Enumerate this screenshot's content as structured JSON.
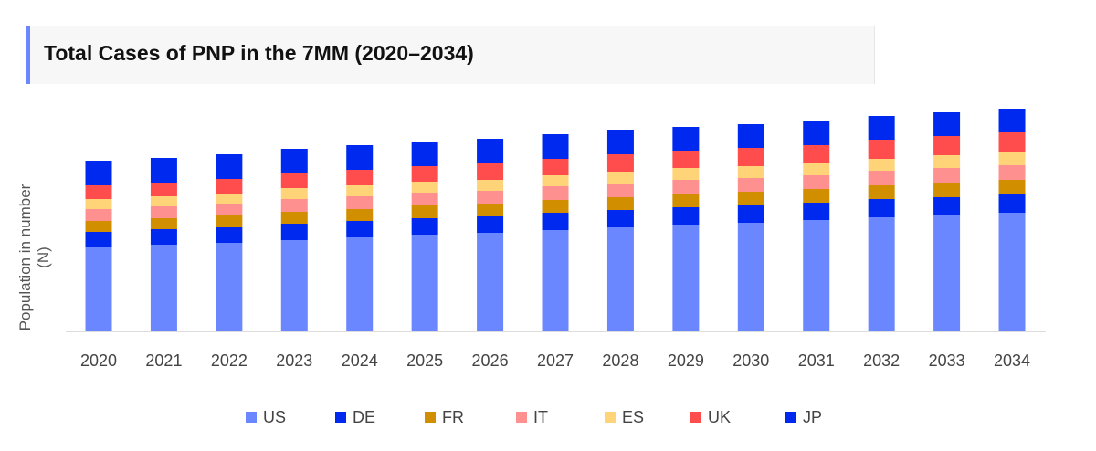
{
  "chart_data": {
    "type": "bar",
    "stacked": true,
    "title": "Total Cases of PNP in the 7MM (2020–2034)",
    "xlabel": "",
    "ylabel": "Population in number (N)",
    "y_tick_labels_shown": false,
    "grid": false,
    "legend_placement": "bottom",
    "categories": [
      "2020",
      "2021",
      "2022",
      "2023",
      "2024",
      "2025",
      "2026",
      "2027",
      "2028",
      "2029",
      "2030",
      "2031",
      "2032",
      "2033",
      "2034"
    ],
    "series": [
      {
        "name": "US",
        "color": "#6b87ff",
        "values": [
          92,
          95,
          97,
          100,
          103,
          106,
          108,
          111,
          114,
          117,
          119,
          122,
          125,
          127,
          130
        ]
      },
      {
        "name": "DE",
        "color": "#0029f0",
        "values": [
          17,
          17,
          17,
          18,
          18,
          18,
          18,
          19,
          19,
          19,
          19,
          19,
          20,
          20,
          20
        ]
      },
      {
        "name": "FR",
        "color": "#d18f00",
        "values": [
          12,
          12,
          13,
          13,
          13,
          14,
          14,
          14,
          14,
          15,
          15,
          15,
          15,
          16,
          16
        ]
      },
      {
        "name": "IT",
        "color": "#ff9090",
        "values": [
          13,
          13,
          13,
          14,
          14,
          14,
          14,
          15,
          15,
          15,
          15,
          15,
          16,
          16,
          16
        ]
      },
      {
        "name": "ES",
        "color": "#ffd479",
        "values": [
          11,
          11,
          11,
          12,
          12,
          12,
          12,
          12,
          13,
          13,
          13,
          13,
          13,
          14,
          14
        ]
      },
      {
        "name": "UK",
        "color": "#ff4d4d",
        "values": [
          15,
          15,
          16,
          16,
          17,
          17,
          18,
          18,
          19,
          19,
          20,
          20,
          21,
          21,
          22
        ]
      },
      {
        "name": "JP",
        "color": "#0029f0",
        "values": [
          27,
          27,
          27,
          27,
          27,
          27,
          27,
          27,
          27,
          26,
          26,
          26,
          26,
          26,
          26
        ]
      }
    ]
  }
}
